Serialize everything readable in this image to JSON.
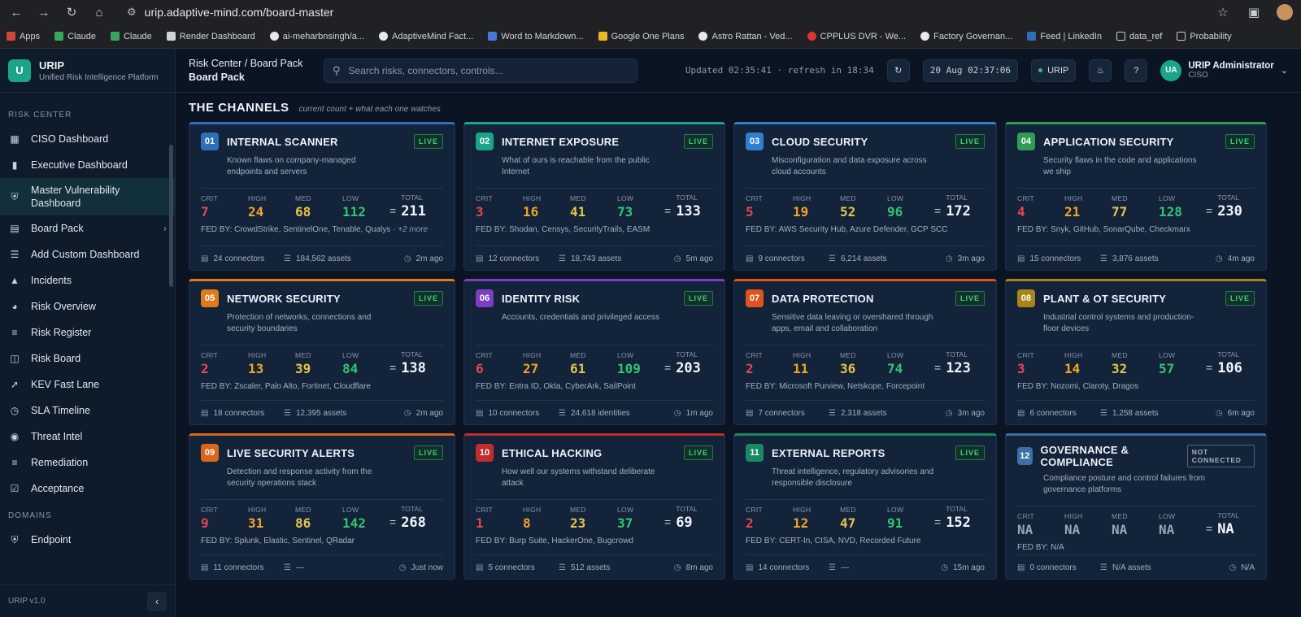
{
  "browser": {
    "url": "urip.adaptive-mind.com/board-master",
    "bookmarks": [
      "Apps",
      "Claude",
      "Claude",
      "Render Dashboard",
      "ai-meharbnsingh/a...",
      "AdaptiveMind Fact...",
      "Word to Markdown...",
      "Google One Plans",
      "Astro Rattan - Ved...",
      "CPPLUS DVR - We...",
      "Factory Governan...",
      "Feed | LinkedIn",
      "data_ref",
      "Probability"
    ]
  },
  "brand": {
    "logo": "U",
    "title": "URIP",
    "subtitle": "Unified Risk Intelligence Platform"
  },
  "sidebar": {
    "section1": "RISK CENTER",
    "items": [
      {
        "label": "CISO Dashboard",
        "icon": "grid-icon"
      },
      {
        "label": "Executive Dashboard",
        "icon": "bar-chart-icon"
      },
      {
        "label": "Master Vulnerability Dashboard",
        "icon": "shield-icon"
      },
      {
        "label": "Board Pack",
        "icon": "document-icon"
      },
      {
        "label": "Add Custom Dashboard",
        "icon": "sliders-icon"
      },
      {
        "label": "Incidents",
        "icon": "warning-icon"
      },
      {
        "label": "Risk Overview",
        "icon": "pie-icon"
      },
      {
        "label": "Risk Register",
        "icon": "list-icon"
      },
      {
        "label": "Risk Board",
        "icon": "board-icon"
      },
      {
        "label": "KEV Fast Lane",
        "icon": "bolt-icon"
      },
      {
        "label": "SLA Timeline",
        "icon": "clock-icon"
      },
      {
        "label": "Threat Intel",
        "icon": "globe-icon"
      },
      {
        "label": "Remediation",
        "icon": "list-check-icon"
      },
      {
        "label": "Acceptance",
        "icon": "clipboard-icon"
      }
    ],
    "section2": "DOMAINS",
    "domain_items": [
      {
        "label": "Endpoint",
        "icon": "shield-icon"
      }
    ],
    "version": "URIP v1.0"
  },
  "topbar": {
    "breadcrumb": "Risk Center / Board Pack",
    "page": "Board Pack",
    "search_placeholder": "Search risks, connectors, controls...",
    "updated": "Updated 02:35:41 · refresh in 18:34",
    "date": "20 Aug 02:37:06",
    "tenant": "URIP",
    "user_initials": "UA",
    "user_name": "URIP Administrator",
    "user_role": "CISO"
  },
  "channels": {
    "title": "THE CHANNELS",
    "subtitle": "current count + what each one watches",
    "labels": {
      "crit": "CRIT",
      "high": "HIGH",
      "med": "MED",
      "low": "LOW",
      "total": "TOTAL",
      "eq": "="
    },
    "cards": [
      {
        "num": "01",
        "name": "INTERNAL SCANNER",
        "status": "LIVE",
        "color": "#2f6fb8",
        "desc": "Known flaws on company-managed endpoints and servers",
        "crit": "7",
        "high": "24",
        "med": "68",
        "low": "112",
        "total": "211",
        "fed": "FED BY: CrowdStrike, SentinelOne, Tenable, Qualys ·",
        "more": "+2 more",
        "connectors": "24 connectors",
        "assets": "184,562 assets",
        "ago": "2m ago"
      },
      {
        "num": "02",
        "name": "INTERNET EXPOSURE",
        "status": "LIVE",
        "color": "#1aa587",
        "desc": "What of ours is reachable from the public Internet",
        "crit": "3",
        "high": "16",
        "med": "41",
        "low": "73",
        "total": "133",
        "fed": "FED BY: Shodan, Censys, SecurityTrails, EASM",
        "more": "",
        "connectors": "12 connectors",
        "assets": "18,743 assets",
        "ago": "5m ago"
      },
      {
        "num": "03",
        "name": "CLOUD SECURITY",
        "status": "LIVE",
        "color": "#2f7fd0",
        "desc": "Misconfiguration and data exposure across cloud accounts",
        "crit": "5",
        "high": "19",
        "med": "52",
        "low": "96",
        "total": "172",
        "fed": "FED BY: AWS Security Hub, Azure Defender, GCP SCC",
        "more": "",
        "connectors": "9 connectors",
        "assets": "6,214 assets",
        "ago": "3m ago"
      },
      {
        "num": "04",
        "name": "APPLICATION SECURITY",
        "status": "LIVE",
        "color": "#2f9b54",
        "desc": "Security flaws in the code and applications we ship",
        "crit": "4",
        "high": "21",
        "med": "77",
        "low": "128",
        "total": "230",
        "fed": "FED BY: Snyk, GitHub, SonarQube, Checkmarx",
        "more": "",
        "connectors": "15 connectors",
        "assets": "3,876 assets",
        "ago": "4m ago"
      },
      {
        "num": "05",
        "name": "NETWORK SECURITY",
        "status": "LIVE",
        "color": "#e07b1c",
        "desc": "Protection of networks, connections and security boundaries",
        "crit": "2",
        "high": "13",
        "med": "39",
        "low": "84",
        "total": "138",
        "fed": "FED BY: Zscaler, Palo Alto, Fortinet, Cloudflare",
        "more": "",
        "connectors": "18 connectors",
        "assets": "12,395 assets",
        "ago": "2m ago"
      },
      {
        "num": "06",
        "name": "IDENTITY RISK",
        "status": "LIVE",
        "color": "#7b3fc4",
        "desc": "Accounts, credentials and privileged access",
        "crit": "6",
        "high": "27",
        "med": "61",
        "low": "109",
        "total": "203",
        "fed": "FED BY: Entra ID, Okta, CyberArk, SailPoint",
        "more": "",
        "connectors": "10 connectors",
        "assets": "24,618 identities",
        "ago": "1m ago"
      },
      {
        "num": "07",
        "name": "DATA PROTECTION",
        "status": "LIVE",
        "color": "#e0531c",
        "desc": "Sensitive data leaving or overshared through apps, email and collaboration",
        "crit": "2",
        "high": "11",
        "med": "36",
        "low": "74",
        "total": "123",
        "fed": "FED BY: Microsoft Purview, Netskope, Forcepoint",
        "more": "",
        "connectors": "7 connectors",
        "assets": "2,318 assets",
        "ago": "3m ago"
      },
      {
        "num": "08",
        "name": "PLANT & OT SECURITY",
        "status": "LIVE",
        "color": "#a98517",
        "desc": "Industrial control systems and production-floor devices",
        "crit": "3",
        "high": "14",
        "med": "32",
        "low": "57",
        "total": "106",
        "fed": "FED BY: Nozomi, Claroty, Dragos",
        "more": "",
        "connectors": "6 connectors",
        "assets": "1,258 assets",
        "ago": "6m ago"
      },
      {
        "num": "09",
        "name": "LIVE SECURITY ALERTS",
        "status": "LIVE",
        "color": "#d9661c",
        "desc": "Detection and response activity from the security operations stack",
        "crit": "9",
        "high": "31",
        "med": "86",
        "low": "142",
        "total": "268",
        "fed": "FED BY: Splunk, Elastic, Sentinel, QRadar",
        "more": "",
        "connectors": "11 connectors",
        "assets": "—",
        "ago": "Just now"
      },
      {
        "num": "10",
        "name": "ETHICAL HACKING",
        "status": "LIVE",
        "color": "#c42b2b",
        "desc": "How well our systems withstand deliberate attack",
        "crit": "1",
        "high": "8",
        "med": "23",
        "low": "37",
        "total": "69",
        "fed": "FED BY: Burp Suite, HackerOne, Bugcrowd",
        "more": "",
        "connectors": "5 connectors",
        "assets": "512 assets",
        "ago": "8m ago"
      },
      {
        "num": "11",
        "name": "EXTERNAL REPORTS",
        "status": "LIVE",
        "color": "#178a64",
        "desc": "Threat intelligence, regulatory advisories and responsible disclosure",
        "crit": "2",
        "high": "12",
        "med": "47",
        "low": "91",
        "total": "152",
        "fed": "FED BY: CERT-In, CISA, NVD, Recorded Future",
        "more": "",
        "connectors": "14 connectors",
        "assets": "—",
        "ago": "15m ago"
      },
      {
        "num": "12",
        "name": "GOVERNANCE & COMPLIANCE",
        "status": "NOT CONNECTED",
        "color": "#3d6fa8",
        "desc": "Compliance posture and control failures from governance platforms",
        "crit": "NA",
        "high": "NA",
        "med": "NA",
        "low": "NA",
        "total": "NA",
        "fed": "FED BY: N/A",
        "more": "",
        "connectors": "0 connectors",
        "assets": "N/A assets",
        "ago": "N/A"
      }
    ]
  }
}
